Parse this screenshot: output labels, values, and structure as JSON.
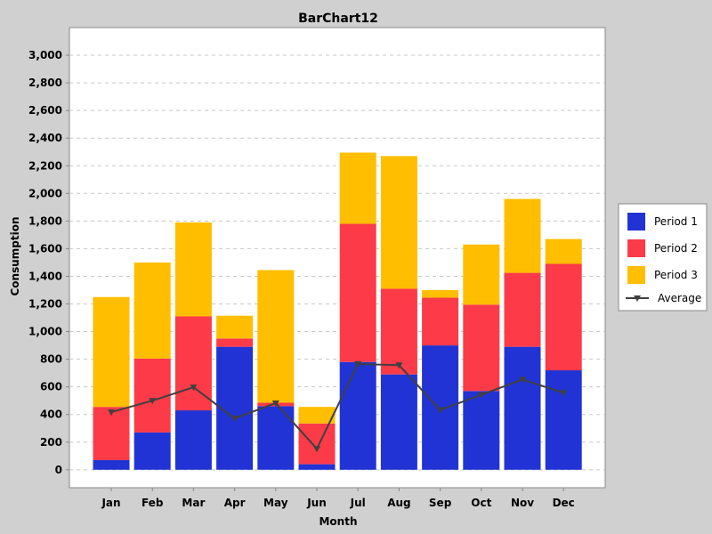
{
  "chart_data": {
    "type": "bar",
    "stacked": true,
    "title": "BarChart12",
    "xlabel": "Month",
    "ylabel": "Consumption",
    "categories": [
      "Jan",
      "Feb",
      "Mar",
      "Apr",
      "May",
      "Jun",
      "Jul",
      "Aug",
      "Sep",
      "Oct",
      "Nov",
      "Dec"
    ],
    "series": [
      {
        "name": "Period 1",
        "color": "#2233d5",
        "values": [
          70,
          270,
          430,
          890,
          460,
          40,
          780,
          690,
          900,
          570,
          890,
          720
        ]
      },
      {
        "name": "Period 2",
        "color": "#fc3a48",
        "values": [
          385,
          535,
          680,
          60,
          25,
          295,
          1000,
          620,
          345,
          625,
          535,
          770
        ]
      },
      {
        "name": "Period 3",
        "color": "#ffbe00",
        "values": [
          795,
          695,
          680,
          165,
          960,
          120,
          515,
          960,
          55,
          435,
          535,
          180
        ]
      }
    ],
    "line": {
      "name": "Average",
      "color": "#404040",
      "values": [
        417,
        500,
        597,
        372,
        482,
        152,
        765,
        757,
        433,
        543,
        653,
        557
      ]
    },
    "yticks": [
      0,
      200,
      400,
      600,
      800,
      1000,
      1200,
      1400,
      1600,
      1800,
      2000,
      2200,
      2400,
      2600,
      2800,
      3000
    ],
    "ytick_labels": [
      "0",
      "200",
      "400",
      "600",
      "800",
      "1,000",
      "1,200",
      "1,400",
      "1,600",
      "1,800",
      "2,000",
      "2,200",
      "2,400",
      "2,600",
      "2,800",
      "3,000"
    ],
    "ylim": [
      -130,
      3200
    ],
    "grid": true,
    "legend_position": "right"
  }
}
